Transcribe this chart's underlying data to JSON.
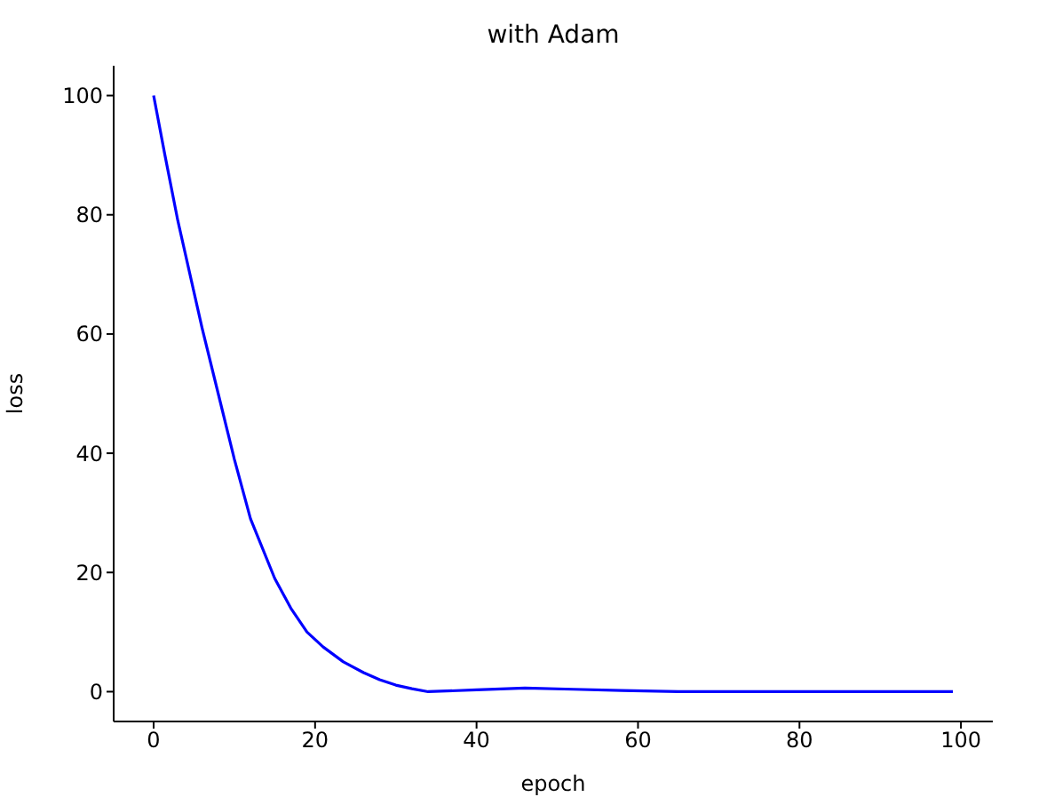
{
  "chart_data": {
    "type": "line",
    "title": "with Adam",
    "xlabel": "epoch",
    "ylabel": "loss",
    "x": [
      0,
      1.4,
      3,
      6,
      8,
      10,
      12,
      15,
      17,
      19,
      21,
      23.5,
      26,
      28,
      30,
      32,
      34,
      40,
      46,
      52,
      58,
      65,
      75,
      85,
      99
    ],
    "series": [
      {
        "color": "#0000ff",
        "values": [
          100,
          90,
          79,
          61,
          50,
          39,
          29,
          19,
          14,
          10,
          7.5,
          5,
          3.2,
          2,
          1.1,
          0.5,
          0,
          0.3,
          0.6,
          0.4,
          0.2,
          0,
          0,
          0,
          0
        ]
      }
    ],
    "xlim": [
      -4.95,
      103.95
    ],
    "xticks": [
      0,
      20,
      40,
      60,
      80,
      100
    ],
    "ylim": [
      -5,
      105
    ],
    "yticks": [
      0,
      20,
      40,
      60,
      80,
      100
    ],
    "grid": false,
    "legend": false,
    "marker": "none",
    "line_style": "solid"
  }
}
